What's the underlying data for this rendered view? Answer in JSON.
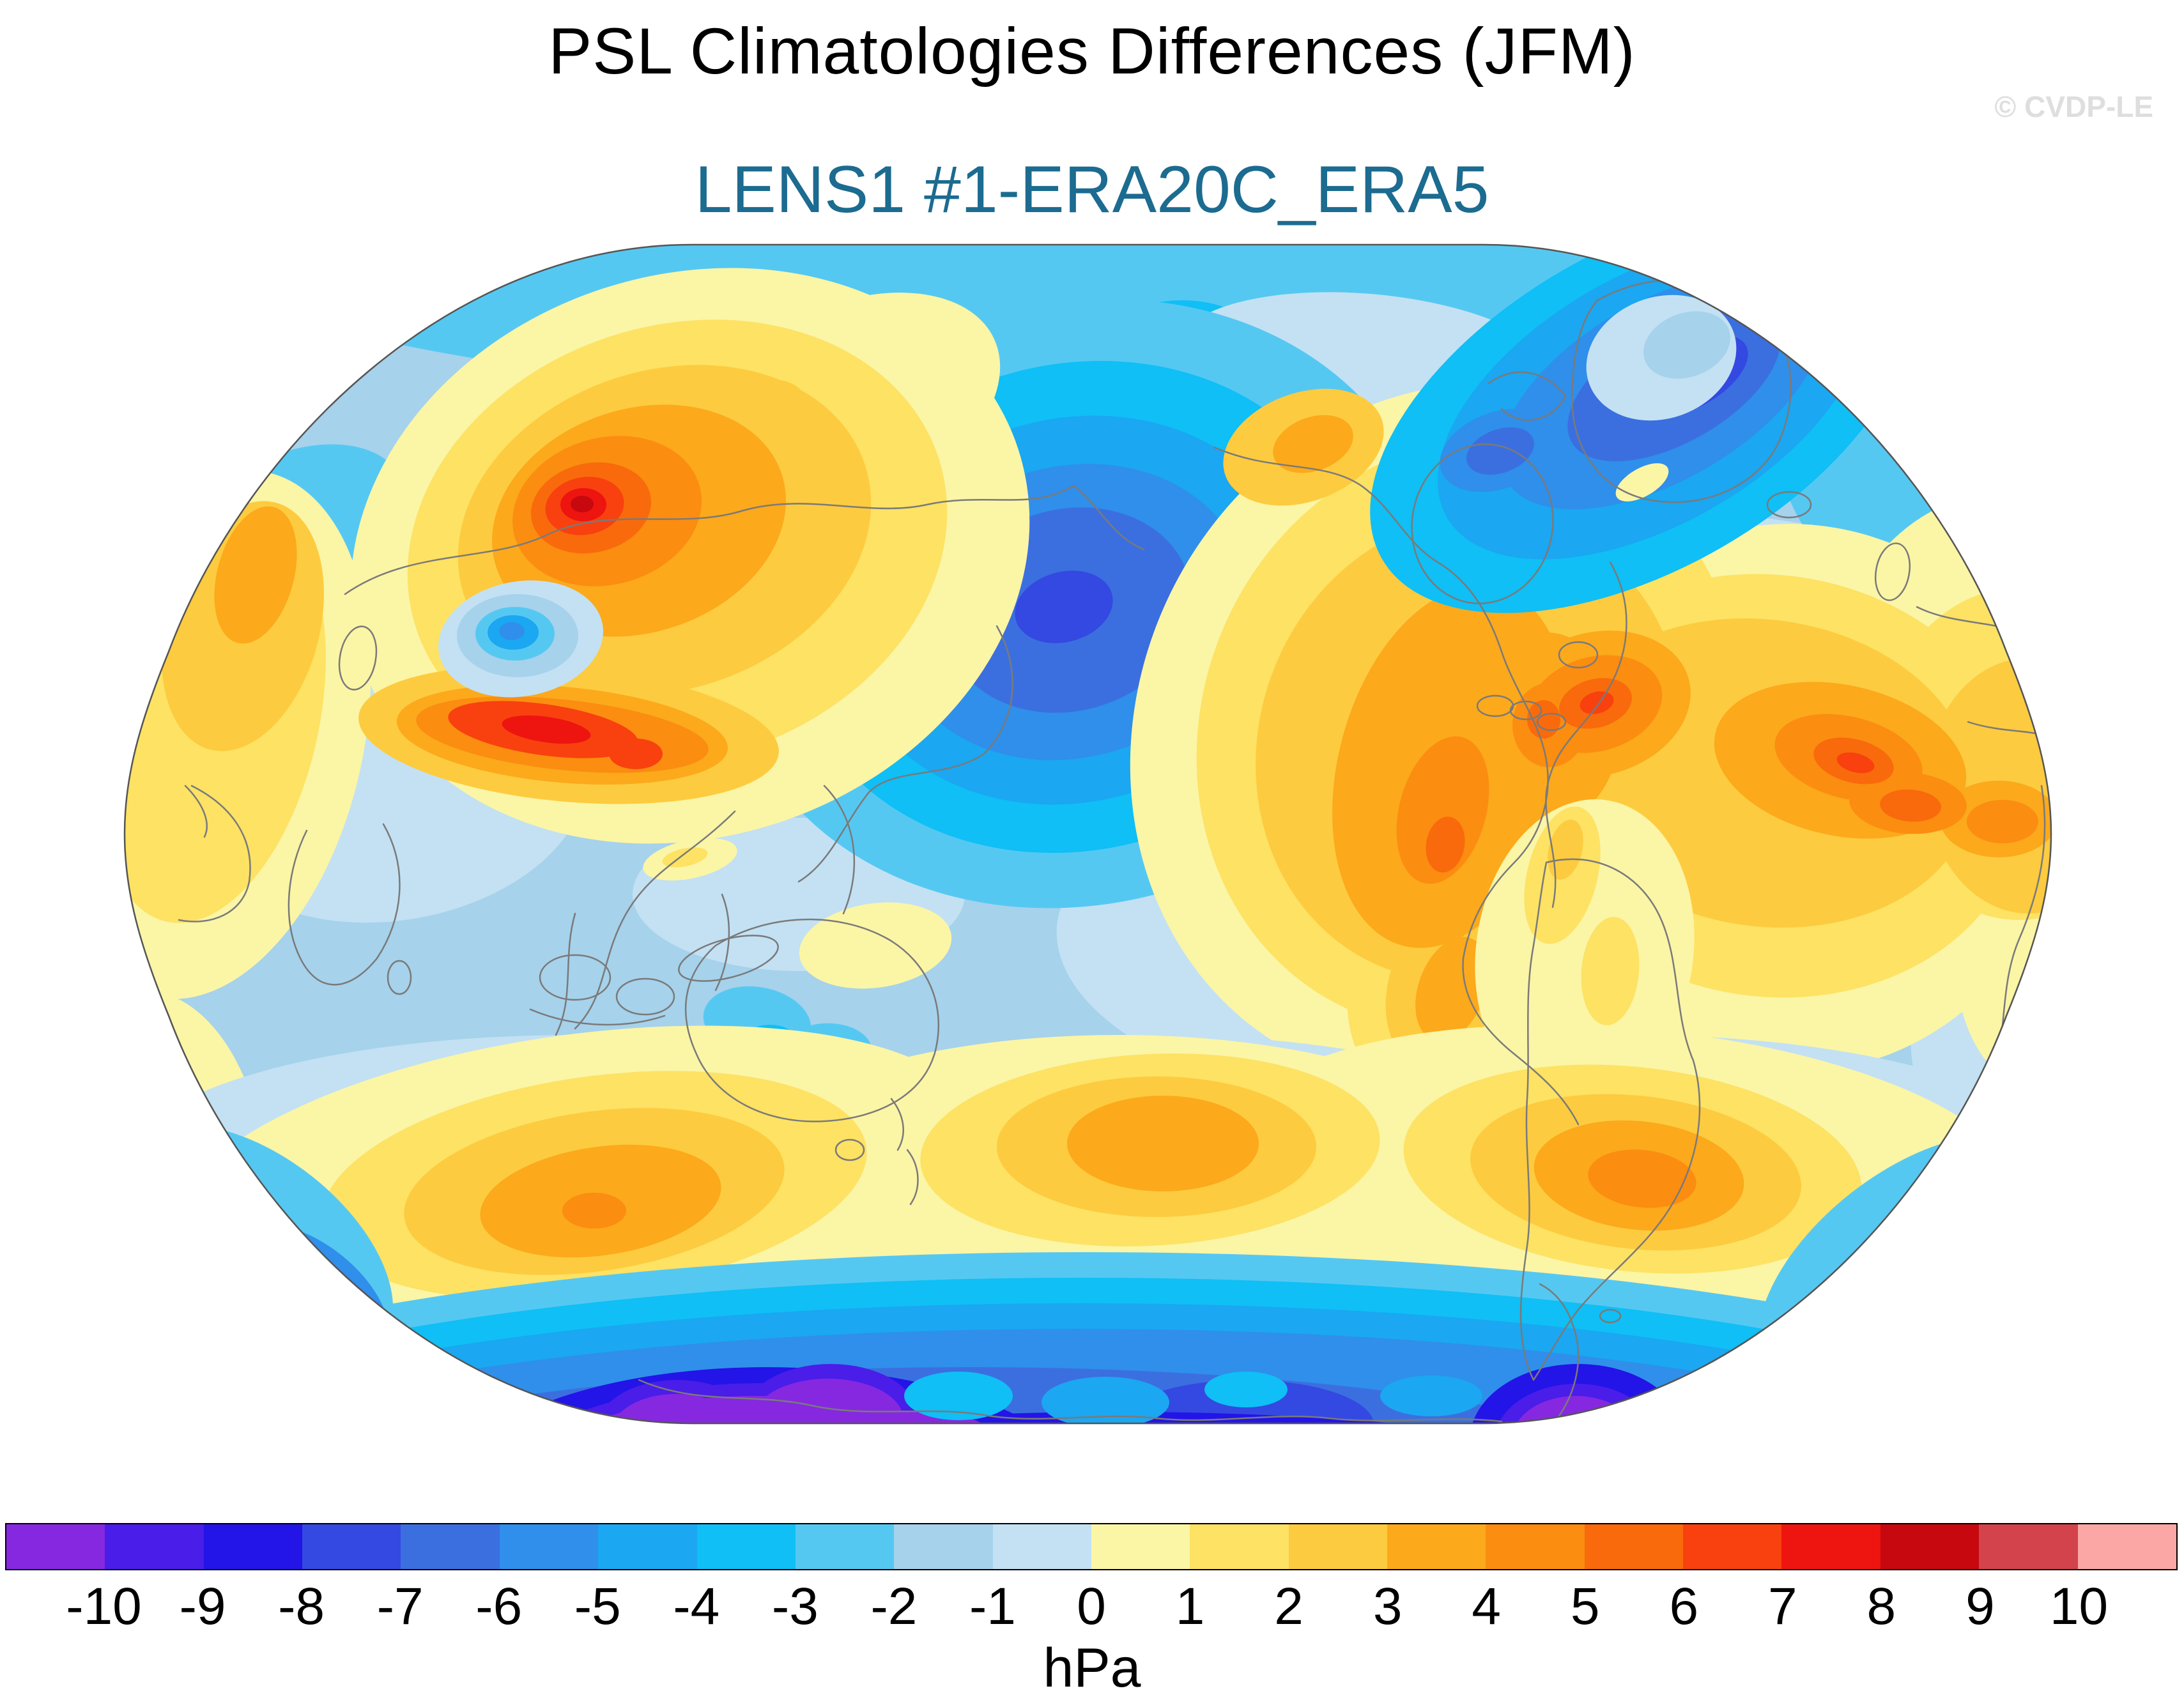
{
  "header": {
    "title": "PSL Climatologies Differences (JFM)",
    "subtitle": "LENS1 #1-ERA20C_ERA5",
    "subtitle_color": "#1C6B90",
    "watermark": "© CVDP-LE",
    "watermark_color": "#DEDEDE"
  },
  "chart_data": {
    "type": "filled_contour_map",
    "title": "PSL Climatologies Differences (JFM)",
    "subtitle": "LENS1 #1-ERA20C_ERA5",
    "variable": "Sea level pressure (PSL) climatology difference",
    "season": "JFM",
    "units": "hPa",
    "projection": "robinson-style oval, Pacific-centered",
    "land_outline_color": "#7a7a7a",
    "colorbar": {
      "orientation": "horizontal",
      "ticks": [
        -10,
        -9,
        -8,
        -7,
        -6,
        -5,
        -4,
        -3,
        -2,
        -1,
        0,
        1,
        2,
        3,
        4,
        5,
        6,
        7,
        8,
        9,
        10
      ],
      "colors": [
        "#8628E0",
        "#4A1DE9",
        "#2314E8",
        "#3449E1",
        "#3B6FE0",
        "#2F8FEB",
        "#1BA7F1",
        "#0FBFF5",
        "#55C8F2",
        "#A6D2EB",
        "#C3E1F3",
        "#FBF5A6",
        "#FDE264",
        "#FDCB3F",
        "#FCA91C",
        "#FB8D10",
        "#F96A0C",
        "#F8410F",
        "#EE1410",
        "#C7080F",
        "#D2434B",
        "#FBA7A6"
      ]
    },
    "features": [
      {
        "region": "Arctic / high northern latitudes",
        "approx_value_hPa": -3
      },
      {
        "region": "North Pacific low (Gulf of Alaska)",
        "approx_value_hPa": -7
      },
      {
        "region": "North Atlantic low (Iceland / Norwegian Sea)",
        "approx_value_hPa": -8
      },
      {
        "region": "Central Asia / Mongolia maximum",
        "approx_value_hPa": 9
      },
      {
        "region": "Tibetan Plateau local minimum",
        "approx_value_hPa": -6
      },
      {
        "region": "North America (Rockies to Great Lakes)",
        "approx_value_hPa": 6
      },
      {
        "region": "Northwest Atlantic (east of Newfoundland)",
        "approx_value_hPa": 7
      },
      {
        "region": "Mediterranean / North Africa",
        "approx_value_hPa": 7
      },
      {
        "region": "Middle East (left edge)",
        "approx_value_hPa": 4
      },
      {
        "region": "Tropical oceans",
        "approx_value_hPa": -1.5
      },
      {
        "region": "Equatorial central Pacific patches",
        "approx_value_hPa": 0.5
      },
      {
        "region": "South Indian Ocean (south of Australia)",
        "approx_value_hPa": 4
      },
      {
        "region": "South Pacific (east of New Zealand)",
        "approx_value_hPa": 4
      },
      {
        "region": "South Atlantic (east of Patagonia)",
        "approx_value_hPa": 5
      },
      {
        "region": "Southern Ocean circumpolar band",
        "approx_value_hPa": -6
      },
      {
        "region": "Antarctic coast (Ross Sea sector)",
        "approx_value_hPa": -11
      },
      {
        "region": "Antarctic coast (Weddell sector)",
        "approx_value_hPa": -10.5
      }
    ]
  }
}
